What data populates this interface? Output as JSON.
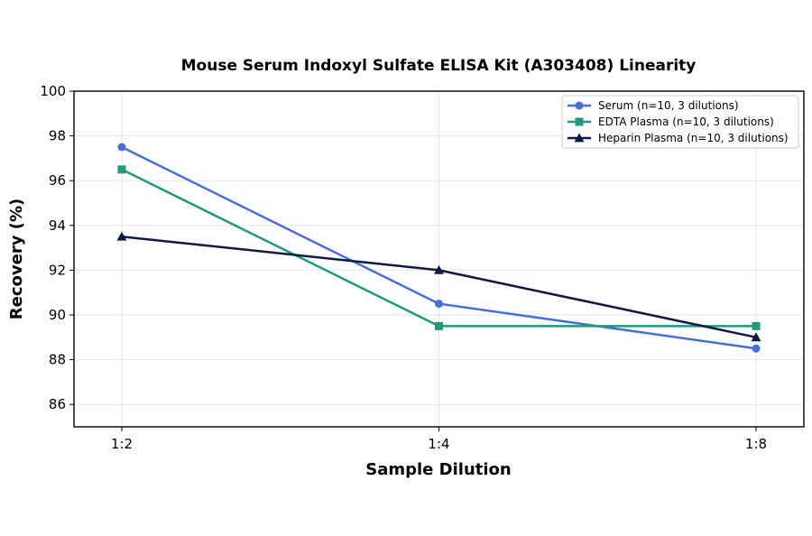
{
  "chart_data": {
    "type": "line",
    "title": "Mouse Serum Indoxyl Sulfate ELISA Kit (A303408) Linearity",
    "xlabel": "Sample Dilution",
    "ylabel": "Recovery (%)",
    "categories": [
      "1:2",
      "1:4",
      "1:8"
    ],
    "ylim": [
      85,
      100
    ],
    "yticks": [
      86,
      88,
      90,
      92,
      94,
      96,
      98,
      100
    ],
    "grid": true,
    "legend_position": "top-right",
    "series": [
      {
        "name": "Serum (n=10, 3 dilutions)",
        "values": [
          97.5,
          90.5,
          88.5
        ],
        "color": "#4a6fd4",
        "marker": "circle"
      },
      {
        "name": "EDTA Plasma (n=10, 3 dilutions)",
        "values": [
          96.5,
          89.5,
          89.5
        ],
        "color": "#22997a",
        "marker": "square"
      },
      {
        "name": "Heparin Plasma (n=10, 3 dilutions)",
        "values": [
          93.5,
          92.0,
          89.0
        ],
        "color": "#0f1a45",
        "marker": "triangle"
      }
    ]
  }
}
